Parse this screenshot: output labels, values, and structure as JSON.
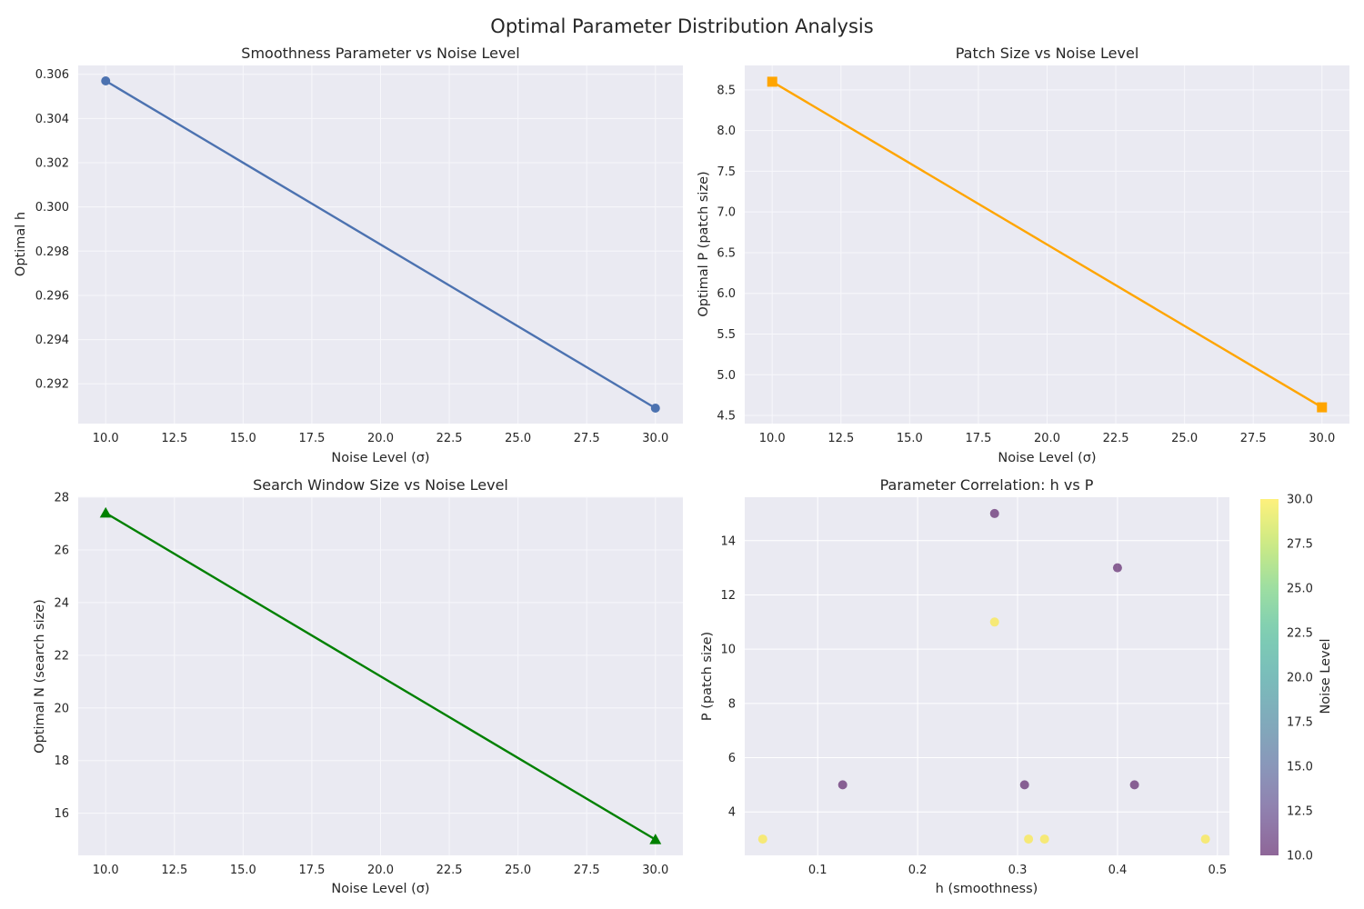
{
  "figure": {
    "title": "Optimal Parameter Distribution Analysis"
  },
  "chart_data": [
    {
      "type": "line",
      "title": "Smoothness Parameter vs Noise Level",
      "xlabel": "Noise Level (σ)",
      "ylabel": "Optimal h",
      "x": [
        10,
        30
      ],
      "y": [
        0.3057,
        0.2909
      ],
      "xlim": [
        9.0,
        31.0
      ],
      "ylim": [
        0.2902,
        0.3064
      ],
      "xticks": [
        "10.0",
        "12.5",
        "15.0",
        "17.5",
        "20.0",
        "22.5",
        "25.0",
        "27.5",
        "30.0"
      ],
      "yticks": [
        "0.292",
        "0.294",
        "0.296",
        "0.298",
        "0.300",
        "0.302",
        "0.304",
        "0.306"
      ],
      "marker": "circle",
      "color": "#4c72b0",
      "grid": true
    },
    {
      "type": "line",
      "title": "Patch Size vs Noise Level",
      "xlabel": "Noise Level (σ)",
      "ylabel": "Optimal P (patch size)",
      "x": [
        10,
        30
      ],
      "y": [
        8.6,
        4.6
      ],
      "xlim": [
        9.0,
        31.0
      ],
      "ylim": [
        4.4,
        8.8
      ],
      "xticks": [
        "10.0",
        "12.5",
        "15.0",
        "17.5",
        "20.0",
        "22.5",
        "25.0",
        "27.5",
        "30.0"
      ],
      "yticks": [
        "4.5",
        "5.0",
        "5.5",
        "6.0",
        "6.5",
        "7.0",
        "7.5",
        "8.0",
        "8.5"
      ],
      "marker": "square",
      "color": "#ffa500",
      "grid": true
    },
    {
      "type": "line",
      "title": "Search Window Size vs Noise Level",
      "xlabel": "Noise Level (σ)",
      "ylabel": "Optimal N (search size)",
      "x": [
        10,
        30
      ],
      "y": [
        27.4,
        15.0
      ],
      "xlim": [
        9.0,
        31.0
      ],
      "ylim": [
        14.4,
        28.0
      ],
      "xticks": [
        "10.0",
        "12.5",
        "15.0",
        "17.5",
        "20.0",
        "22.5",
        "25.0",
        "27.5",
        "30.0"
      ],
      "yticks": [
        "16",
        "18",
        "20",
        "22",
        "24",
        "26",
        "28"
      ],
      "marker": "triangle",
      "color": "#008000",
      "grid": true
    },
    {
      "type": "scatter",
      "title": "Parameter Correlation: h vs P",
      "xlabel": "h (smoothness)",
      "ylabel": "P (patch size)",
      "xlim": [
        0.027,
        0.512
      ],
      "ylim": [
        2.4,
        15.6
      ],
      "xticks": [
        "0.1",
        "0.2",
        "0.3",
        "0.4",
        "0.5"
      ],
      "yticks": [
        "4",
        "6",
        "8",
        "10",
        "12",
        "14"
      ],
      "points": [
        {
          "h": 0.277,
          "P": 15,
          "noise": 10
        },
        {
          "h": 0.4,
          "P": 13,
          "noise": 10
        },
        {
          "h": 0.125,
          "P": 5,
          "noise": 10
        },
        {
          "h": 0.307,
          "P": 5,
          "noise": 10
        },
        {
          "h": 0.417,
          "P": 5,
          "noise": 10
        },
        {
          "h": 0.277,
          "P": 11,
          "noise": 30
        },
        {
          "h": 0.045,
          "P": 3,
          "noise": 30
        },
        {
          "h": 0.311,
          "P": 3,
          "noise": 30
        },
        {
          "h": 0.327,
          "P": 3,
          "noise": 30
        },
        {
          "h": 0.488,
          "P": 3,
          "noise": 30
        }
      ],
      "colorbar": {
        "label": "Noise Level",
        "range": [
          10,
          30
        ],
        "ticks": [
          "10.0",
          "12.5",
          "15.0",
          "17.5",
          "20.0",
          "22.5",
          "25.0",
          "27.5",
          "30.0"
        ],
        "colormap": "viridis",
        "alpha": 0.6
      },
      "grid": true
    }
  ]
}
